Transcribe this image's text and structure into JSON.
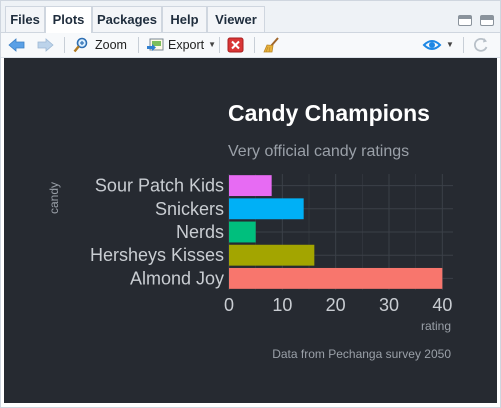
{
  "tabs": [
    {
      "label": "Files",
      "active": false
    },
    {
      "label": "Plots",
      "active": true
    },
    {
      "label": "Packages",
      "active": false
    },
    {
      "label": "Help",
      "active": false
    },
    {
      "label": "Viewer",
      "active": false
    }
  ],
  "toolbar": {
    "zoom_label": "Zoom",
    "export_label": "Export",
    "icons": [
      "back-arrow-icon",
      "forward-arrow-icon",
      "zoom-icon",
      "export-icon",
      "remove-plot-icon",
      "broom-icon",
      "publish-icon",
      "refresh-icon"
    ]
  },
  "colors": {
    "plot_background": "#262a31",
    "grid": "#3b4048",
    "text_light": "#ffffff",
    "text_muted": "#9aa0a8",
    "accent": "#1e88e5"
  },
  "chart_data": {
    "type": "bar",
    "orientation": "horizontal",
    "title": "Candy Champions",
    "subtitle": "Very official candy ratings",
    "xlabel": "rating",
    "ylabel": "candy",
    "caption": "Data from Pechanga survey 2050",
    "categories": [
      "Almond Joy",
      "Hersheys Kisses",
      "Nerds",
      "Snickers",
      "Sour Patch Kids"
    ],
    "values": [
      40,
      16,
      5,
      14,
      8
    ],
    "bar_colors": [
      "#f8766d",
      "#a3a500",
      "#00bf7d",
      "#00b0f6",
      "#e76bf3"
    ],
    "xlim": [
      0,
      42
    ],
    "xticks": [
      0,
      10,
      20,
      30,
      40
    ],
    "grid": true
  }
}
